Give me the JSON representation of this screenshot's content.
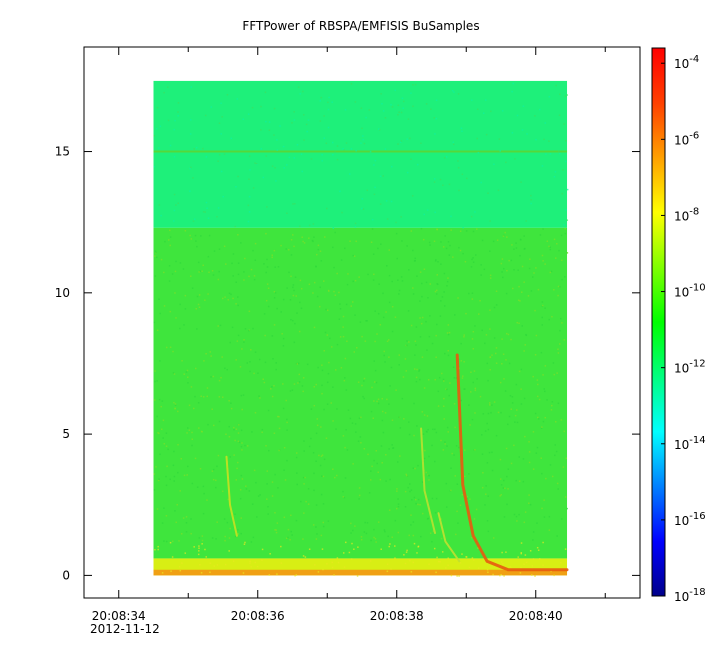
{
  "chart_data": {
    "type": "heatmap",
    "title": "FFTPower of RBSPA/EMFISIS  BuSamples",
    "xlabel": "",
    "ylabel": "",
    "x_ticks": [
      "20:08:34",
      "20:08:36",
      "20:08:38",
      "20:08:40"
    ],
    "x_date_label": "2012-11-12",
    "xlim": [
      33.5,
      41.5
    ],
    "data_xrange": [
      34.5,
      40.45
    ],
    "y_ticks": [
      0,
      5,
      10,
      15
    ],
    "ylim": [
      -0.8,
      18.7
    ],
    "data_yrange": [
      0,
      17.5
    ],
    "colorbar": {
      "scale": "log",
      "range_exponents": [
        -18,
        -3.6
      ],
      "tick_exponents": [
        -18,
        -16,
        -14,
        -12,
        -10,
        -8,
        -6,
        -4
      ],
      "tick_base": "10",
      "colors": [
        "#00008a",
        "#0000ff",
        "#0080ff",
        "#00ffff",
        "#00ff80",
        "#00ff00",
        "#80ff00",
        "#ffff00",
        "#ffa000",
        "#ff4000",
        "#ff0000"
      ]
    },
    "regions": [
      {
        "y": [
          12.3,
          17.5
        ],
        "level_exp": -12,
        "color": "#1ef07a"
      },
      {
        "y": [
          0.6,
          12.3
        ],
        "level_exp": -10,
        "color": "#3fe53d"
      },
      {
        "y": [
          0,
          0.6
        ],
        "level_exp": -8,
        "color": "#d8ee14"
      }
    ],
    "line_15": {
      "y": 15,
      "level_exp": -10,
      "color": "#55d83a"
    },
    "features": [
      {
        "name": "whistler-main",
        "points": [
          [
            38.87,
            7.8
          ],
          [
            38.95,
            3.2
          ],
          [
            39.1,
            1.4
          ],
          [
            39.3,
            0.5
          ],
          [
            39.6,
            0.2
          ],
          [
            40.45,
            0.2
          ]
        ],
        "color": "#e85a10"
      },
      {
        "name": "whistler-faint-1",
        "points": [
          [
            35.55,
            4.2
          ],
          [
            35.6,
            2.5
          ],
          [
            35.7,
            1.4
          ]
        ],
        "color": "#c8e020"
      },
      {
        "name": "whistler-faint-2",
        "points": [
          [
            38.35,
            5.2
          ],
          [
            38.4,
            3.0
          ],
          [
            38.55,
            1.5
          ]
        ],
        "color": "#b8e030"
      },
      {
        "name": "whistler-faint-3",
        "points": [
          [
            38.6,
            2.2
          ],
          [
            38.7,
            1.2
          ],
          [
            38.9,
            0.5
          ]
        ],
        "color": "#c0e030"
      }
    ]
  }
}
